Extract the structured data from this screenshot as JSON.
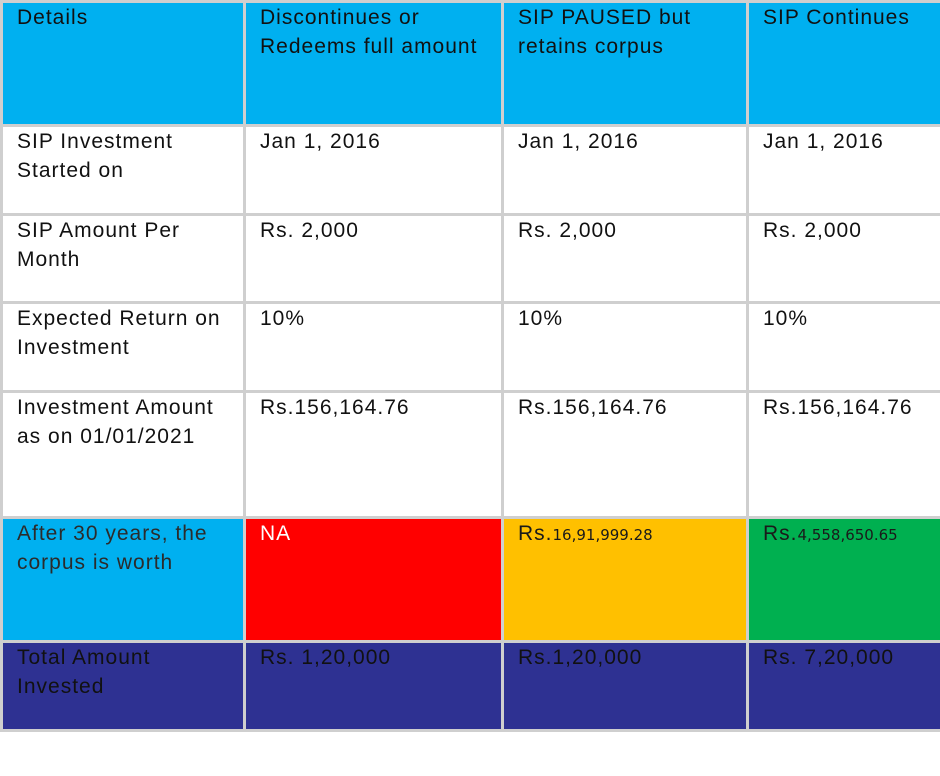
{
  "colors": {
    "header_bg": "#00b0f0",
    "header_text": "#ffffff",
    "na_bg": "#ff0000",
    "paused_bg": "#ffc000",
    "continue_bg": "#00b050",
    "total_bg": "#2e3192",
    "grid": "#cfcfcf"
  },
  "header": {
    "details": "Details",
    "col1": "Discontinues or Redeems full amount",
    "col2": "SIP PAUSED but retains corpus",
    "col3": "SIP Continues"
  },
  "rows": {
    "started": {
      "label": "SIP Investment Started on",
      "col1": "Jan 1, 2016",
      "col2": "Jan 1, 2016",
      "col3": "Jan 1, 2016"
    },
    "amount": {
      "label": "SIP Amount Per Month",
      "col1": "Rs. 2,000",
      "col2": "Rs. 2,000",
      "col3": "Rs. 2,000"
    },
    "return": {
      "label": "Expected Return on Investment",
      "col1": "10%",
      "col2": "10%",
      "col3": "10%"
    },
    "investment": {
      "label": "Investment Amount as on 01/01/2021",
      "col1": "Rs.156,164.76",
      "col2": "Rs.156,164.76",
      "col3": "Rs.156,164.76"
    },
    "corpus": {
      "label": "After 30 years, the corpus is worth",
      "col1": "NA",
      "col2_prefix": "Rs.",
      "col2_value": "16,91,999.28",
      "col3_prefix": "Rs.",
      "col3_value": "4,558,650.65"
    },
    "total": {
      "label": "Total Amount Invested",
      "col1": "Rs. 1,20,000",
      "col2": "Rs.1,20,000",
      "col3": "Rs. 7,20,000"
    }
  }
}
